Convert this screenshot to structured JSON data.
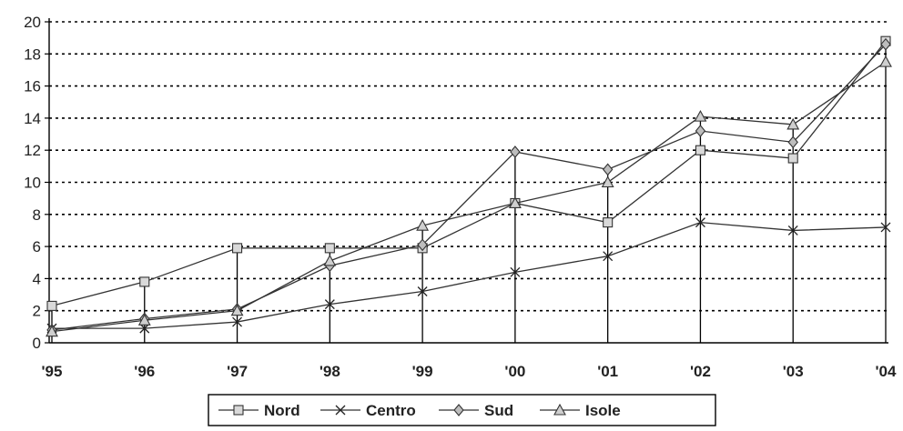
{
  "chart_data": {
    "type": "line",
    "categories": [
      "'95",
      "'96",
      "'97",
      "'98",
      "'99",
      "'00",
      "'01",
      "'02",
      "'03",
      "'04"
    ],
    "y_ticks": [
      "0",
      "2",
      "4",
      "6",
      "8",
      "10",
      "12",
      "14",
      "16",
      "18",
      "20"
    ],
    "ylim": [
      0,
      20
    ],
    "grid": "horizontal-dotted",
    "drop_lines": true,
    "legend_position": "bottom",
    "series": [
      {
        "name": "Nord",
        "marker": "square",
        "values": [
          2.3,
          3.8,
          5.9,
          5.9,
          5.9,
          8.7,
          7.5,
          12.0,
          11.5,
          18.8
        ]
      },
      {
        "name": "Centro",
        "marker": "x",
        "values": [
          0.9,
          0.9,
          1.3,
          2.4,
          3.2,
          4.4,
          5.4,
          7.5,
          7.0,
          7.2
        ]
      },
      {
        "name": "Sud",
        "marker": "diamond",
        "values": [
          0.8,
          1.5,
          2.1,
          4.8,
          6.1,
          11.9,
          10.8,
          13.2,
          12.5,
          18.6
        ]
      },
      {
        "name": "Isole",
        "marker": "triangle",
        "values": [
          0.7,
          1.4,
          2.0,
          5.1,
          7.3,
          8.7,
          10.0,
          14.1,
          13.6,
          17.5
        ]
      }
    ]
  }
}
